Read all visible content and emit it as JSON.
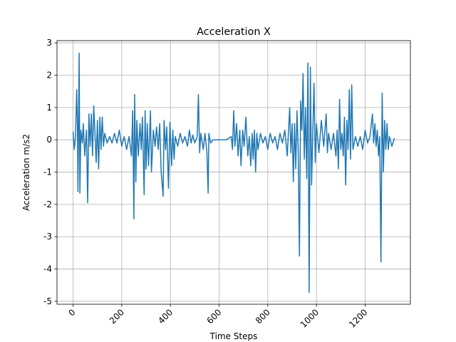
{
  "chart_data": {
    "type": "line",
    "title": "Acceleration X",
    "x_label": "Time Steps",
    "y_label": "Acceleration m/s2",
    "x": [
      0,
      5,
      10,
      15,
      18,
      20,
      25,
      28,
      32,
      38,
      42,
      48,
      55,
      60,
      65,
      70,
      75,
      80,
      85,
      90,
      95,
      100,
      105,
      110,
      115,
      120,
      125,
      130,
      140,
      150,
      160,
      170,
      180,
      190,
      200,
      210,
      220,
      230,
      240,
      245,
      250,
      253,
      258,
      262,
      268,
      275,
      280,
      285,
      292,
      296,
      300,
      305,
      310,
      318,
      322,
      330,
      337,
      343,
      350,
      356,
      362,
      370,
      374,
      380,
      385,
      392,
      398,
      405,
      410,
      415,
      420,
      430,
      440,
      450,
      460,
      470,
      478,
      485,
      492,
      500,
      510,
      515,
      520,
      525,
      535,
      542,
      550,
      555,
      558,
      565,
      575,
      600,
      630,
      650,
      655,
      660,
      665,
      672,
      678,
      685,
      690,
      697,
      703,
      710,
      718,
      724,
      730,
      736,
      740,
      745,
      750,
      755,
      760,
      770,
      780,
      790,
      800,
      810,
      820,
      830,
      840,
      850,
      860,
      870,
      880,
      890,
      895,
      900,
      905,
      910,
      915,
      920,
      925,
      930,
      935,
      940,
      945,
      950,
      955,
      960,
      965,
      970,
      975,
      980,
      985,
      990,
      995,
      1000,
      1010,
      1020,
      1030,
      1040,
      1045,
      1050,
      1060,
      1070,
      1080,
      1085,
      1090,
      1095,
      1100,
      1105,
      1110,
      1115,
      1120,
      1125,
      1130,
      1135,
      1140,
      1145,
      1150,
      1160,
      1170,
      1180,
      1190,
      1200,
      1210,
      1220,
      1230,
      1235,
      1240,
      1245,
      1250,
      1255,
      1260,
      1265,
      1270,
      1275,
      1280,
      1285,
      1290,
      1295,
      1300,
      1310,
      1320
    ],
    "series": [
      {
        "name": "Acceleration X",
        "color": "#1f77b4",
        "values": [
          0.25,
          -0.3,
          0.1,
          1.55,
          0.5,
          -1.6,
          2.68,
          -1.65,
          0.3,
          -0.1,
          0.5,
          -0.5,
          0.3,
          -1.95,
          0.8,
          -0.2,
          0.8,
          -0.5,
          1.05,
          0.2,
          -0.7,
          0.6,
          -0.9,
          0.7,
          -0.3,
          0.7,
          -0.2,
          0.2,
          -0.1,
          0.1,
          -0.1,
          0.2,
          -0.1,
          0.3,
          -0.2,
          0.1,
          -0.3,
          0.1,
          -0.5,
          0.9,
          -2.45,
          1.4,
          -1.3,
          0.6,
          -0.5,
          0.5,
          -0.3,
          0.7,
          -1.7,
          0.9,
          -0.9,
          0.5,
          -0.8,
          0.9,
          -1.0,
          0.3,
          -0.2,
          0.4,
          -0.3,
          0.5,
          -1.0,
          -1.75,
          0.6,
          -0.3,
          0.4,
          -1.5,
          0.55,
          -0.8,
          0.3,
          -0.6,
          0.1,
          -0.2,
          0.2,
          -0.1,
          0.1,
          -0.2,
          0.3,
          -0.1,
          0.15,
          -0.1,
          0.1,
          1.4,
          -0.4,
          0.2,
          -0.3,
          0.2,
          -0.4,
          -1.65,
          0.2,
          -0.1,
          0,
          0,
          0,
          0.1,
          -0.3,
          0.9,
          -0.2,
          0.5,
          -0.5,
          0.3,
          -0.8,
          0.3,
          -0.2,
          0.7,
          -0.5,
          0.1,
          -0.8,
          0.2,
          -0.6,
          0.3,
          -1.0,
          0.2,
          -0.3,
          0.2,
          -0.1,
          0.1,
          -0.3,
          0.2,
          -0.1,
          0.1,
          -0.3,
          0.2,
          -0.1,
          0.3,
          -0.5,
          1.0,
          -0.4,
          0.5,
          -1.3,
          0.5,
          -0.9,
          0.9,
          -0.3,
          -3.6,
          1.2,
          0.3,
          2.05,
          -0.6,
          1.0,
          -1.2,
          2.38,
          -4.73,
          2.25,
          -1.4,
          0.2,
          1.75,
          -0.7,
          0.5,
          -0.4,
          0.6,
          -0.2,
          0.8,
          -0.4,
          0.2,
          -0.3,
          0.2,
          -0.5,
          0.3,
          -0.9,
          1.25,
          -0.3,
          0.2,
          -0.5,
          0.7,
          -1.4,
          0.6,
          -0.3,
          1.55,
          -0.6,
          1.7,
          -0.3,
          0.1,
          -0.2,
          0.1,
          -0.3,
          0.3,
          -0.1,
          0.1,
          0.8,
          -0.1,
          0.5,
          -0.2,
          0.3,
          -0.5,
          0.1,
          -3.78,
          1.45,
          -1.0,
          0.6,
          -0.3,
          0.5,
          -0.3,
          0.1,
          -0.2,
          0.05
        ]
      }
    ],
    "xlim": [
      -66,
      1386
    ],
    "xticks": [
      0,
      200,
      400,
      600,
      800,
      1000,
      1200
    ],
    "ylim": [
      -5.09,
      3.07
    ],
    "yticks": [
      -5,
      -4,
      -3,
      -2,
      -1,
      0,
      1,
      2,
      3
    ],
    "grid": true
  }
}
